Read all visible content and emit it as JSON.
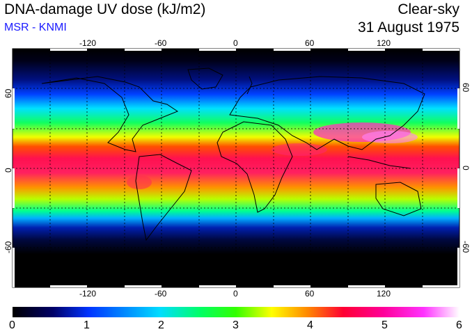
{
  "header": {
    "title": "DNA-damage UV dose (kJ/m2)",
    "subtitle": "MSR - KNMI",
    "condition": "Clear-sky",
    "date": "31 August 1975"
  },
  "map": {
    "lon_ticks": [
      "-120",
      "-60",
      "0",
      "60",
      "120"
    ],
    "lat_ticks_left": [
      "60",
      "0",
      "-60"
    ],
    "lat_ticks_right": [
      "60",
      "0",
      "-60"
    ]
  },
  "colorbar": {
    "labels": [
      "0",
      "1",
      "2",
      "3",
      "4",
      "5",
      "6"
    ],
    "stops": [
      "#000000",
      "#000066",
      "#0033ff",
      "#00ddff",
      "#00ff66",
      "#33ff00",
      "#ffff00",
      "#ff8800",
      "#ff0033",
      "#ff0099",
      "#ff33ff",
      "#ffffff"
    ]
  },
  "colors": {
    "subtitle": "#1a1aff"
  }
}
